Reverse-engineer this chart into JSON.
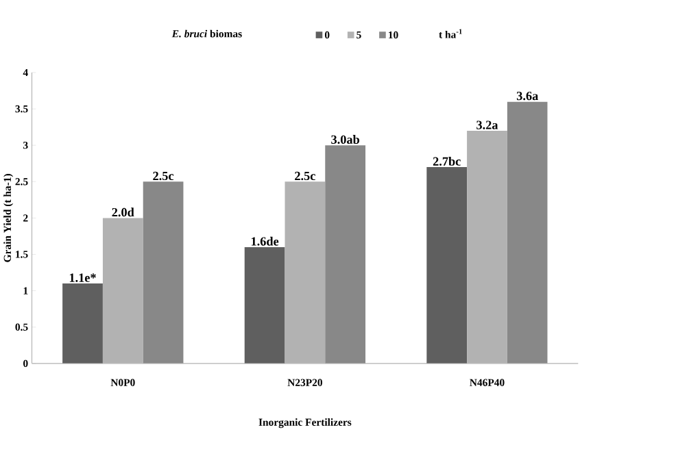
{
  "chart_data": {
    "type": "bar",
    "legend_title": "*E. bruci* biomas",
    "annotations": [
      "t ha$^{-1}$"
    ],
    "xlabel": "Inorganic Fertilizers",
    "ylabel": "Grain Yield (t ha-1)",
    "categories": [
      "N0P0",
      "N23P20",
      "N46P40"
    ],
    "series": [
      {
        "name": "0",
        "color": "#5f5f5f",
        "values": [
          1.1,
          1.6,
          2.7
        ],
        "value_labels": [
          "1.1e*",
          "1.6de",
          "2.7bc"
        ]
      },
      {
        "name": "5",
        "color": "#b2b2b2",
        "values": [
          2.0,
          2.5,
          3.2
        ],
        "value_labels": [
          "2.0d",
          "2.5c",
          "3.2a"
        ]
      },
      {
        "name": "10",
        "color": "#888888",
        "values": [
          2.5,
          3.0,
          3.6
        ],
        "value_labels": [
          "2.5c",
          "3.0ab",
          "3.6a"
        ]
      }
    ],
    "ylim": [
      0,
      4
    ],
    "yticks": [
      0,
      0.5,
      1,
      1.5,
      2,
      2.5,
      3,
      3.5,
      4
    ],
    "legend": "top",
    "grid": false
  }
}
